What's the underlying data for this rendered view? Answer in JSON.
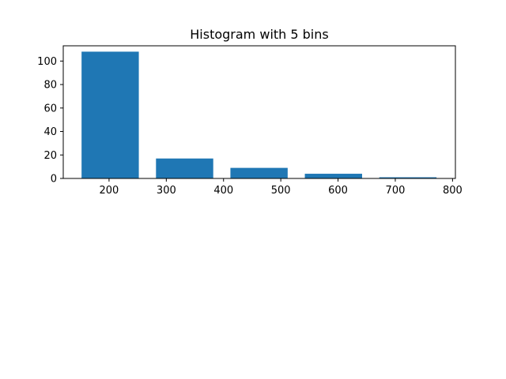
{
  "chart_data": {
    "type": "bar",
    "title": "Histogram with 5 bins",
    "xlabel": "",
    "ylabel": "",
    "categories": [
      "200",
      "300",
      "400",
      "500",
      "600"
    ],
    "bins": [
      {
        "start": 152,
        "end": 252,
        "count": 108
      },
      {
        "start": 282,
        "end": 382,
        "count": 17
      },
      {
        "start": 412,
        "end": 512,
        "count": 9
      },
      {
        "start": 542,
        "end": 642,
        "count": 4
      },
      {
        "start": 672,
        "end": 772,
        "count": 1
      }
    ],
    "values": [
      108,
      17,
      9,
      4,
      1
    ],
    "xlim": [
      120,
      805
    ],
    "ylim": [
      0,
      113
    ],
    "xticks": [
      200,
      300,
      400,
      500,
      600,
      700,
      800
    ],
    "yticks": [
      0,
      20,
      40,
      60,
      80,
      100
    ],
    "grid": false,
    "bar_color": "#1f77b4"
  }
}
